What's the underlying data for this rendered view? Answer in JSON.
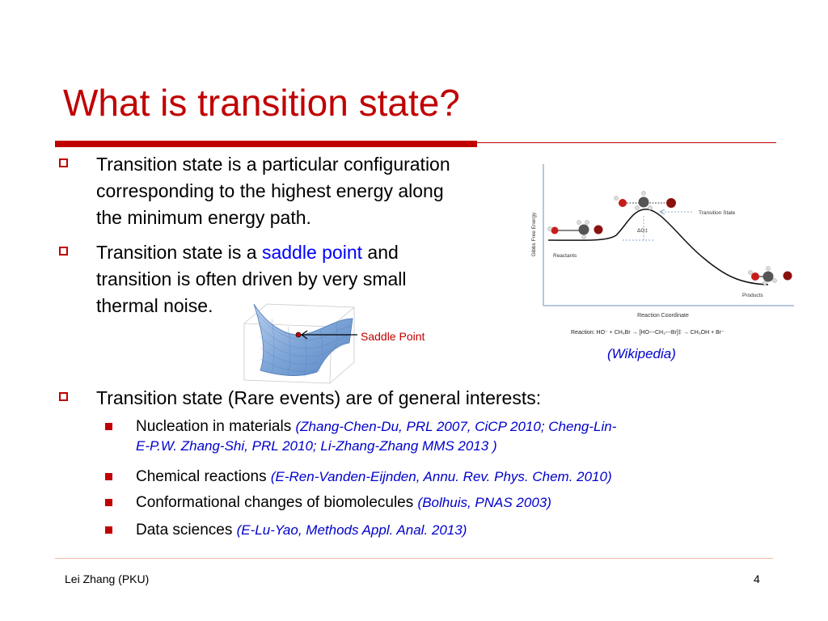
{
  "slide": {
    "title": "What is transition state?",
    "bullets": [
      {
        "lines": [
          "Transition state is a particular configuration",
          "corresponding to the highest energy along",
          "the minimum energy path."
        ]
      },
      {
        "line1_pre": "Transition state is a ",
        "line1_highlight": "saddle point",
        "line1_post": " and",
        "lines": [
          "transition is often driven by very small",
          "thermal noise."
        ]
      },
      {
        "lines": [
          "Transition state (Rare events) are of general interests:"
        ]
      }
    ],
    "sub_bullets": [
      {
        "label": "Nucleation in materials",
        "cite_line1": "(Zhang-Chen-Du, PRL 2007, CiCP 2010; Cheng-Lin-",
        "cite_line2": "E-P.W. Zhang-Shi, PRL 2010; Li-Zhang-Zhang MMS 2013 )"
      },
      {
        "label": "Chemical reactions",
        "cite": "(E-Ren-Vanden-Eijnden, Annu. Rev. Phys. Chem. 2010)"
      },
      {
        "label": "Conformational changes of biomolecules",
        "cite": "(Bolhuis, PNAS 2003)"
      },
      {
        "label": "Data sciences",
        "cite": "(E-Lu-Yao, Methods Appl. Anal. 2013)"
      }
    ],
    "saddle_figure": {
      "label": "Saddle Point"
    },
    "energy_figure": {
      "source": "(Wikipedia)",
      "y_axis_label": "Gibbs Free Energy",
      "x_axis_label": "Reaction Coordinate",
      "transition_state_label": "Transition State",
      "delta_g_label": "ΔG‡",
      "reactants_label": "Reactants",
      "products_label": "Products",
      "reaction_text": "Reaction:  HO⁻ + CH₃Br → [HO---CH₃---Br]‡ → CH₃OH + Br⁻"
    },
    "footer": {
      "author": "Lei Zhang (PKU)",
      "page": "4"
    },
    "colors": {
      "accent": "#c00000",
      "citation": "#0000cc",
      "highlight": "#0000ff"
    }
  }
}
